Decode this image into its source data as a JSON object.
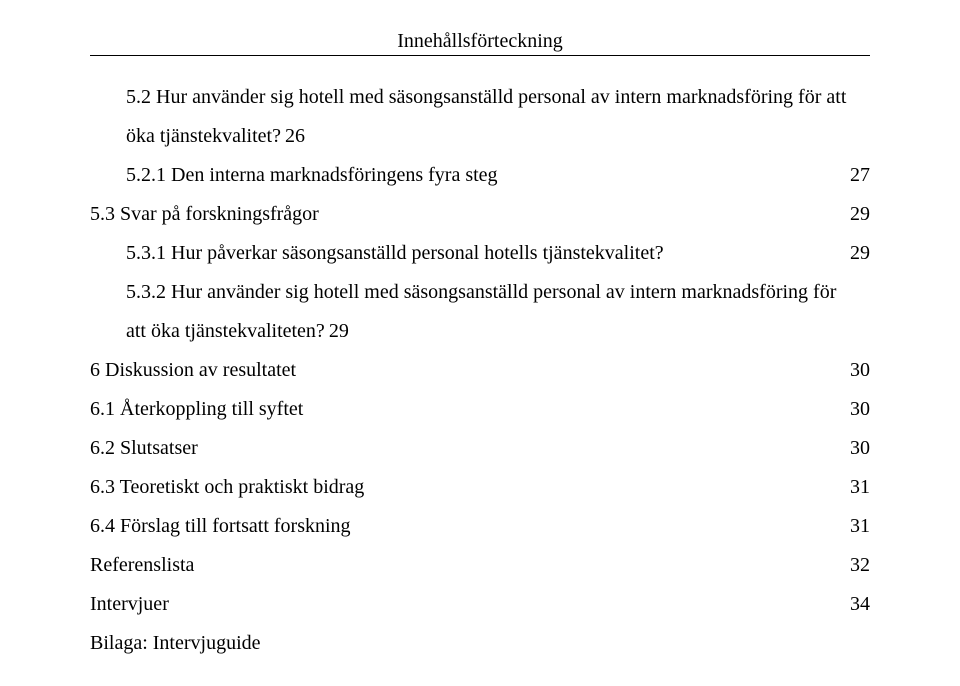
{
  "title": "Innehållsförteckning",
  "entries": [
    {
      "indent": 1,
      "wrap": true,
      "line1": "5.2 Hur använder sig hotell med säsongsanställd personal av intern marknadsföring för att",
      "line2": "öka tjänstekvalitet?",
      "page": "26"
    },
    {
      "indent": 1,
      "label": "5.2.1 Den interna marknadsföringens fyra steg",
      "page": "27"
    },
    {
      "indent": 0,
      "label": "5.3 Svar på forskningsfrågor",
      "page": "29"
    },
    {
      "indent": 1,
      "label": "5.3.1 Hur påverkar säsongsanställd personal hotells tjänstekvalitet?",
      "page": "29"
    },
    {
      "indent": 1,
      "wrap": true,
      "line1": "5.3.2 Hur använder sig hotell med säsongsanställd personal av intern marknadsföring för",
      "line2": "att öka tjänstekvaliteten?",
      "page": "29"
    },
    {
      "indent": 0,
      "label": "6 Diskussion av resultatet",
      "page": "30"
    },
    {
      "indent": 0,
      "label": "6.1 Återkoppling till syftet",
      "page": "30"
    },
    {
      "indent": 0,
      "label": "6.2 Slutsatser",
      "page": "30"
    },
    {
      "indent": 0,
      "label": "6.3 Teoretiskt och praktiskt bidrag",
      "page": "31"
    },
    {
      "indent": 0,
      "label": "6.4 Förslag till fortsatt forskning",
      "page": "31"
    },
    {
      "indent": 0,
      "label": "Referenslista",
      "page": "32"
    },
    {
      "indent": 0,
      "label": "Intervjuer",
      "page": "34"
    },
    {
      "indent": 0,
      "label": "Bilaga: Intervjuguide",
      "page": ""
    }
  ]
}
